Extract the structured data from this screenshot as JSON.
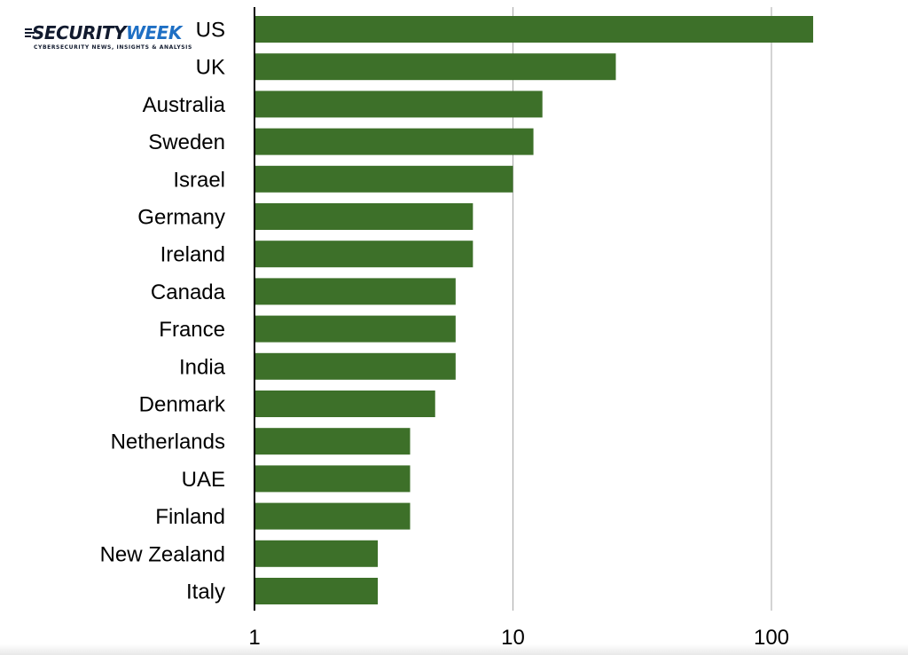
{
  "logo": {
    "word_part1": "SECURITY",
    "word_part2": "WEEK",
    "tagline": "CYBERSECURITY NEWS, INSIGHTS & ANALYSIS",
    "colors": {
      "dark": "#111a2e",
      "accent": "#1e6fc4"
    }
  },
  "chart_data": {
    "type": "bar",
    "orientation": "horizontal",
    "x_scale": "log",
    "xlim": [
      1,
      250
    ],
    "xticks": [
      1,
      10,
      100
    ],
    "xtick_labels": [
      "1",
      "10",
      "100"
    ],
    "grid": "vertical lines at major ticks",
    "bar_color": "#3d7029",
    "categories": [
      "US",
      "UK",
      "Australia",
      "Sweden",
      "Israel",
      "Germany",
      "Ireland",
      "Canada",
      "France",
      "India",
      "Denmark",
      "Netherlands",
      "UAE",
      "Finland",
      "New Zealand",
      "Italy"
    ],
    "values": [
      145,
      25,
      13,
      12,
      10,
      7,
      7,
      6,
      6,
      6,
      5,
      4,
      4,
      4,
      3,
      3
    ],
    "title": "",
    "xlabel": "",
    "ylabel": ""
  }
}
